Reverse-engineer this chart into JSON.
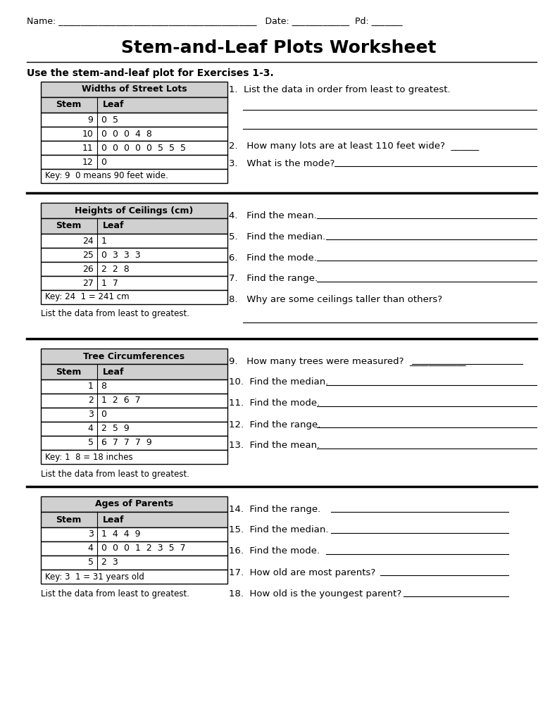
{
  "title": "Stem-and-Leaf Plots Worksheet",
  "section1_instruction": "Use the stem-and-leaf plot for Exercises 1-3.",
  "table1_title": "Widths of Street Lots",
  "table1_headers": [
    "Stem",
    "Leaf"
  ],
  "table1_rows": [
    [
      "9",
      "0  5"
    ],
    [
      "10",
      "0  0  0  4  8"
    ],
    [
      "11",
      "0  0  0  0  0  5  5  5"
    ],
    [
      "12",
      "0"
    ]
  ],
  "table1_key": "Key: 9 0 means 90 feet wide.",
  "table2_title": "Heights of Ceilings (cm)",
  "table2_headers": [
    "Stem",
    "Leaf"
  ],
  "table2_rows": [
    [
      "24",
      "1"
    ],
    [
      "25",
      "0  3  3  3"
    ],
    [
      "26",
      "2  2  8"
    ],
    [
      "27",
      "1  7"
    ]
  ],
  "table2_key": "Key: 24 1 = 241 cm",
  "table2_note": "List the data from least to greatest.",
  "table3_title": "Tree Circumferences",
  "table3_headers": [
    "Stem",
    "Leaf"
  ],
  "table3_rows": [
    [
      "1",
      "8"
    ],
    [
      "2",
      "1  2  6  7"
    ],
    [
      "3",
      "0"
    ],
    [
      "4",
      "2  5  9"
    ],
    [
      "5",
      "6  7  7  7  9"
    ]
  ],
  "table3_key": "Key: 1 8 = 18 inches",
  "table3_note": "List the data from least to greatest.",
  "table4_title": "Ages of Parents",
  "table4_headers": [
    "Stem",
    "Leaf"
  ],
  "table4_rows": [
    [
      "3",
      "1  4  4  9"
    ],
    [
      "4",
      "0  0  0  1  2  3  5  7"
    ],
    [
      "5",
      "2  3"
    ]
  ],
  "table4_key": "Key: 3 1 = 31 years old",
  "table4_note": "List the data from least to greatest.",
  "bg_color": "#ffffff"
}
